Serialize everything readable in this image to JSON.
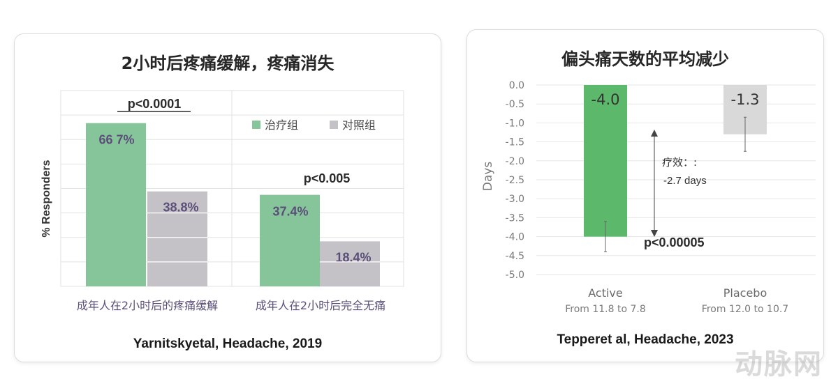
{
  "chart_data": [
    {
      "type": "bar",
      "title": "2小时后疼痛缓解，疼痛消失",
      "ylabel": "% Responders",
      "categories": [
        "成年人在2小时后的疼痛缓解",
        "成年人在2小时后完全无痛"
      ],
      "series": [
        {
          "name": "治疗组",
          "values": [
            66.7,
            37.4
          ],
          "value_labels": [
            "66 7%",
            "37.4%"
          ],
          "color": "#86c49a"
        },
        {
          "name": "对照组",
          "values": [
            38.8,
            18.4
          ],
          "value_labels": [
            "38.8%",
            "18.4%"
          ],
          "color": "#c4c2c6"
        }
      ],
      "annotations": [
        "p<0.0001",
        "p<0.005"
      ],
      "ylim": [
        0,
        80
      ],
      "grid": true,
      "legend": "top-right",
      "source": "Yarnitskyetal, Headache, 2019"
    },
    {
      "type": "bar",
      "title": "偏头痛天数的平均减少",
      "ylabel": "Days",
      "categories": [
        "Active",
        "Placebo"
      ],
      "category_sublabels": [
        "From 11.8 to 7.8",
        "From 12.0 to 10.7"
      ],
      "values": [
        -4.0,
        -1.3
      ],
      "value_labels": [
        "-4.0",
        "-1.3"
      ],
      "error_low": [
        -4.4,
        -1.75
      ],
      "error_high": [
        -3.6,
        -0.85
      ],
      "colors": [
        "#5cb86a",
        "#d9d9d9"
      ],
      "ylim": [
        -5.0,
        0.0
      ],
      "yticks": [
        "0.0",
        "-0.5",
        "-1.0",
        "-1.5",
        "-2.0",
        "-2.5",
        "-3.0",
        "-3.5",
        "-4.0",
        "-4.5",
        "-5.0"
      ],
      "grid": true,
      "annotations": {
        "effect_label": "疗效：:",
        "effect_value": "-2.7 days",
        "p_value": "p<0.00005"
      },
      "source": "Tepperet al, Headache, 2023"
    }
  ],
  "watermark": "动脉网"
}
